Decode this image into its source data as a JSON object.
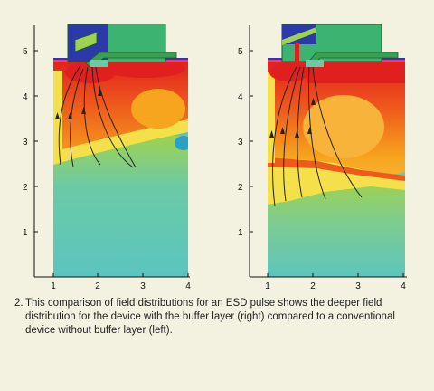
{
  "figure": {
    "panels": [
      {
        "side": "left",
        "y_ticks": [
          "1",
          "2",
          "3",
          "4",
          "5"
        ],
        "x_ticks": [
          "1",
          "2",
          "3",
          "4"
        ]
      },
      {
        "side": "right",
        "y_ticks": [
          "1",
          "2",
          "3",
          "4",
          "5"
        ],
        "x_ticks": [
          "1",
          "2",
          "3",
          "4"
        ]
      }
    ],
    "colormap": [
      "#2aa0c8",
      "#6bcaa6",
      "#9fd24e",
      "#f3e04a",
      "#f7a51e",
      "#ef5a1c",
      "#e01f1f"
    ]
  },
  "caption": {
    "number": "2.",
    "text": "This comparison of field distributions for an ESD pulse shows the deeper field distribution for the device with the buffer layer (right) compared to a conventional device without buffer layer (left)."
  }
}
